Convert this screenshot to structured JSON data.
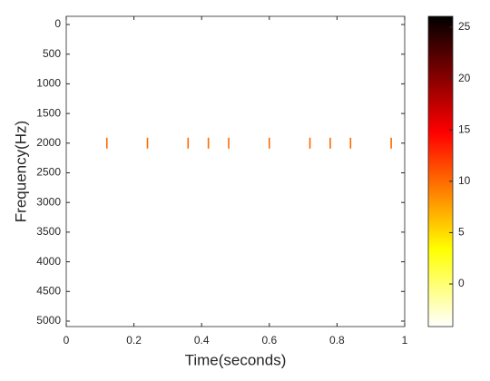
{
  "chart_data": {
    "type": "heatmap",
    "xlabel": "Time(seconds)",
    "ylabel": "Frequency(Hz)",
    "x": [
      0.12,
      0.24,
      0.36,
      0.42,
      0.48,
      0.6,
      0.72,
      0.78,
      0.84,
      0.96
    ],
    "frequencies": [
      2000,
      2000,
      2000,
      2000,
      2000,
      2000,
      2000,
      2000,
      2000,
      2000
    ],
    "values": [
      10,
      10,
      10,
      10,
      10,
      10,
      10,
      10,
      10,
      10
    ],
    "xlim": [
      0,
      1
    ],
    "xticks": [
      0,
      0.2,
      0.4,
      0.6,
      0.8,
      1
    ],
    "ylim": [
      -138,
      5092
    ],
    "y_reversed": true,
    "yticks": [
      0,
      500,
      1000,
      1500,
      2000,
      2500,
      3000,
      3500,
      4000,
      4500,
      5000
    ],
    "clim": [
      -4.15,
      26.06
    ],
    "cticks": [
      0,
      5,
      10,
      15,
      20,
      25
    ],
    "colormap": [
      "#ffffff",
      "#ffff00",
      "#ff0000",
      "#000000"
    ],
    "colormap_stops": [
      0,
      0.25,
      0.625,
      1
    ]
  }
}
